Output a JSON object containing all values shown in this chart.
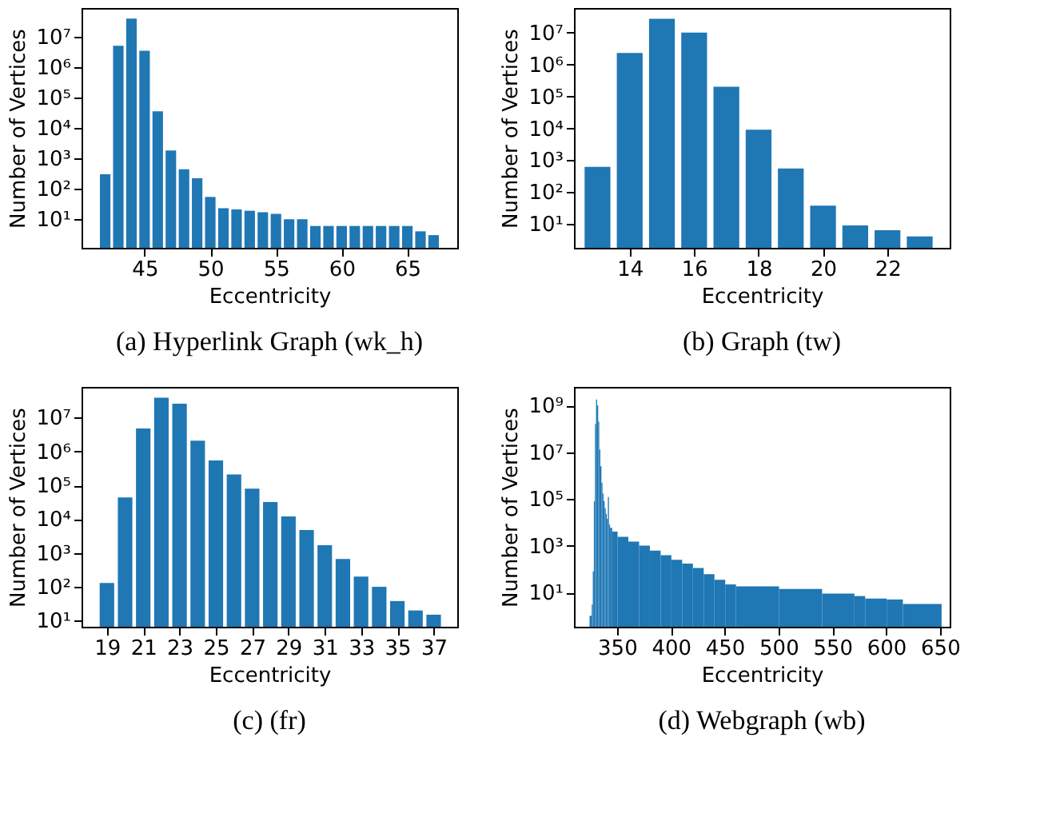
{
  "chart_data": [
    {
      "type": "bar",
      "title": "(a) Hyperlink Graph (wk_h)",
      "xlabel": "Eccentricity",
      "ylabel": "Number of Vertices",
      "color": "#1f77b4",
      "log": "y",
      "grid": false,
      "x": [
        42,
        43,
        44,
        45,
        46,
        47,
        48,
        49,
        50,
        51,
        52,
        53,
        54,
        55,
        56,
        57,
        58,
        59,
        60,
        61,
        62,
        63,
        64,
        65,
        66,
        67
      ],
      "values": [
        300,
        5000000,
        39000000,
        3400000,
        35000,
        1800,
        440,
        220,
        54,
        23,
        21,
        19,
        17,
        15,
        10,
        10,
        6,
        6,
        6,
        6,
        6,
        6,
        6,
        6,
        4,
        3
      ],
      "xlim": [
        40.2,
        68.8
      ],
      "xticks": [
        45,
        50,
        55,
        60,
        65
      ],
      "ylim": [
        1.15,
        87000000
      ],
      "yticks": [
        {
          "value": 10,
          "label": "10¹"
        },
        {
          "value": 100,
          "label": "10²"
        },
        {
          "value": 1000,
          "label": "10³"
        },
        {
          "value": 10000,
          "label": "10⁴"
        },
        {
          "value": 100000,
          "label": "10⁵"
        },
        {
          "value": 1000000,
          "label": "10⁶"
        },
        {
          "value": 10000000,
          "label": "10⁷"
        }
      ]
    },
    {
      "type": "bar",
      "title": "(b) Graph (tw)",
      "xlabel": "Eccentricity",
      "ylabel": "Number of Vertices",
      "color": "#1f77b4",
      "log": "y",
      "grid": false,
      "x": [
        13,
        14,
        15,
        16,
        17,
        18,
        19,
        20,
        21,
        22,
        23
      ],
      "values": [
        620,
        2300000,
        27000000,
        10000000,
        200000,
        9000,
        550,
        38,
        9,
        6.4,
        4.1
      ],
      "xlim": [
        12.27,
        23.93
      ],
      "xticks": [
        14,
        16,
        18,
        20,
        22
      ],
      "ylim": [
        1.8,
        59000000
      ],
      "yticks": [
        {
          "value": 10,
          "label": "10¹"
        },
        {
          "value": 100,
          "label": "10²"
        },
        {
          "value": 1000,
          "label": "10³"
        },
        {
          "value": 10000,
          "label": "10⁴"
        },
        {
          "value": 100000,
          "label": "10⁵"
        },
        {
          "value": 1000000,
          "label": "10⁶"
        },
        {
          "value": 10000000,
          "label": "10⁷"
        }
      ]
    },
    {
      "type": "bar",
      "title": "(c) (fr)",
      "xlabel": "Eccentricity",
      "ylabel": "Number of Vertices",
      "color": "#1f77b4",
      "log": "y",
      "grid": false,
      "x": [
        19,
        20,
        21,
        22,
        23,
        24,
        25,
        26,
        27,
        28,
        29,
        30,
        31,
        32,
        33,
        34,
        35,
        36,
        37
      ],
      "values": [
        130,
        44000,
        4800000,
        39000000,
        26000000,
        2100000,
        540000,
        210000,
        80000,
        32000,
        12000,
        4800,
        1700,
        660,
        200,
        100,
        38,
        20,
        15
      ],
      "xlim": [
        17.6,
        38.3
      ],
      "xticks": [
        19,
        21,
        23,
        25,
        27,
        29,
        31,
        33,
        35,
        37
      ],
      "ylim": [
        6.6,
        81000000
      ],
      "yticks": [
        {
          "value": 10,
          "label": "10¹"
        },
        {
          "value": 100,
          "label": "10²"
        },
        {
          "value": 1000,
          "label": "10³"
        },
        {
          "value": 10000,
          "label": "10⁴"
        },
        {
          "value": 100000,
          "label": "10⁵"
        },
        {
          "value": 1000000,
          "label": "10⁶"
        },
        {
          "value": 10000000,
          "label": "10⁷"
        }
      ]
    },
    {
      "type": "histogram",
      "title": "(d) Webgraph (wb)",
      "xlabel": "Eccentricity",
      "ylabel": "Number of Vertices",
      "color": "#1f77b4",
      "log": "y",
      "grid": false,
      "bins": [
        324.5,
        326.5,
        327.5,
        328.5,
        329.5,
        330.5,
        331.5,
        332.5,
        333.5,
        334.5,
        335.5,
        336.5,
        337.5,
        338.5,
        339.5,
        340.5,
        341.5,
        342.5,
        343.5,
        345.5,
        350.5,
        360.5,
        370.5,
        380.5,
        390.5,
        400.5,
        410.5,
        420.5,
        430.5,
        440.5,
        450.5,
        460.5,
        500.5,
        540.5,
        570.5,
        580.5,
        600.5,
        615.5,
        651.5
      ],
      "values": [
        1,
        3,
        80,
        80000,
        160000000,
        1800000000,
        1000000000,
        200000000,
        13000000,
        2500000,
        500000,
        170000,
        80000,
        40000,
        23000,
        14000,
        120000,
        8000,
        5800,
        4000,
        2400,
        1500,
        1000,
        620,
        390,
        250,
        170,
        110,
        60,
        35,
        22,
        18,
        14,
        9,
        7,
        5.5,
        5,
        3.2
      ],
      "xlim": [
        310,
        659
      ],
      "xticks": [
        350,
        400,
        450,
        500,
        550,
        600,
        650
      ],
      "ylim": [
        0.34,
        6200000000
      ],
      "yticks": [
        {
          "value": 10,
          "label": "10¹"
        },
        {
          "value": 1000,
          "label": "10³"
        },
        {
          "value": 100000,
          "label": "10⁵"
        },
        {
          "value": 10000000,
          "label": "10⁷"
        },
        {
          "value": 1000000000,
          "label": "10⁹"
        }
      ]
    }
  ]
}
